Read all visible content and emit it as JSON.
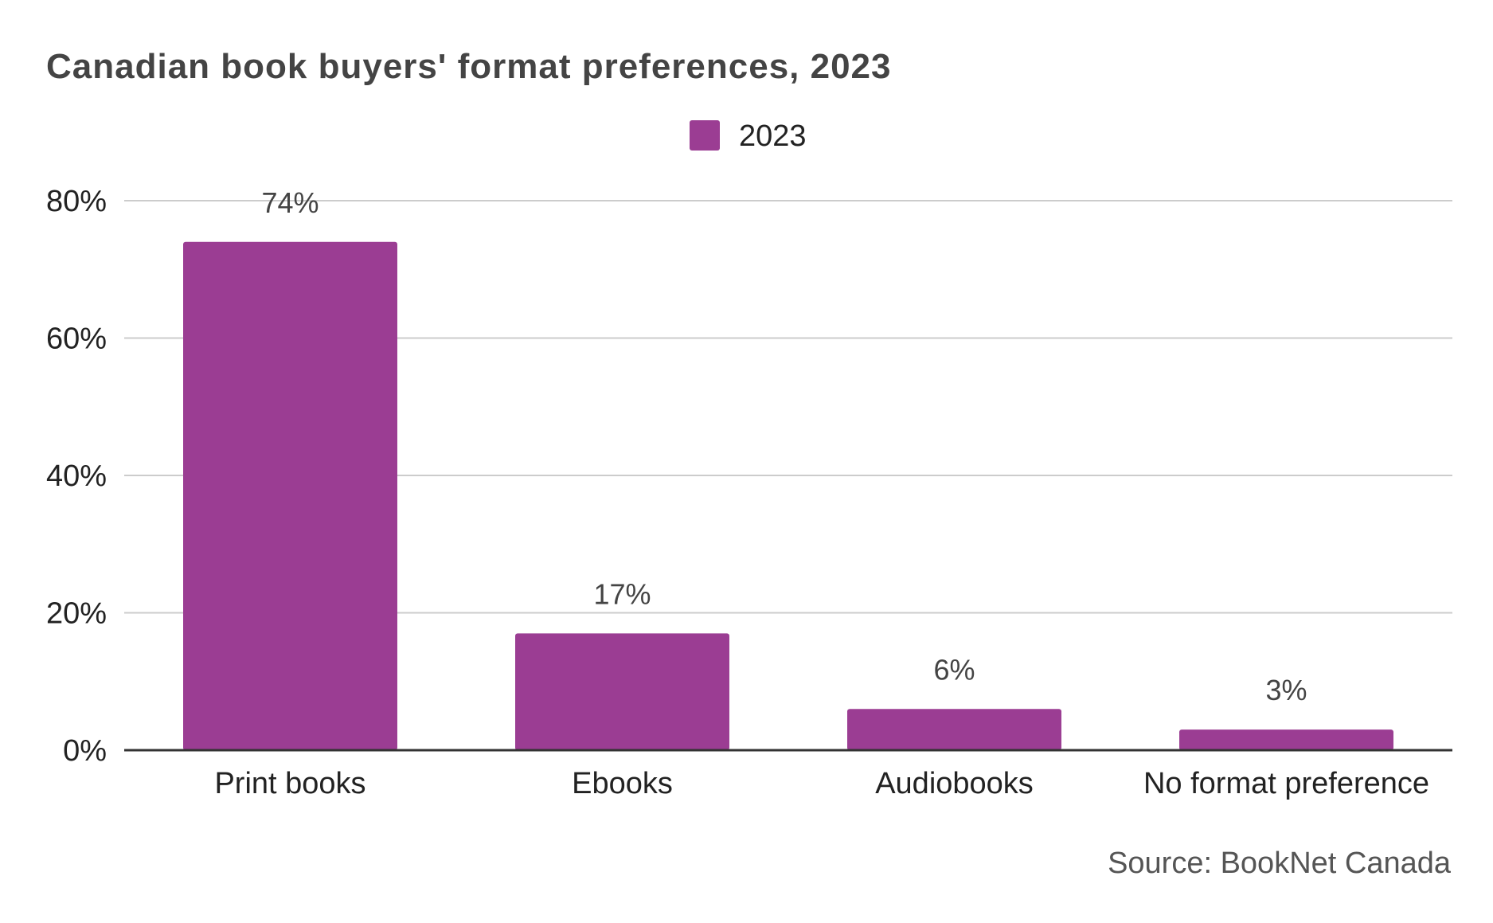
{
  "chart_data": {
    "type": "bar",
    "title": "Canadian book buyers' format preferences, 2023",
    "categories": [
      "Print books",
      "Ebooks",
      "Audiobooks",
      "No format preference"
    ],
    "series": [
      {
        "name": "2023",
        "values": [
          74,
          17,
          6,
          3
        ],
        "labels": [
          "74%",
          "17%",
          "6%",
          "3%"
        ]
      }
    ],
    "yticks": [
      {
        "value": 0,
        "label": "0%"
      },
      {
        "value": 20,
        "label": "20%"
      },
      {
        "value": 40,
        "label": "40%"
      },
      {
        "value": 60,
        "label": "60%"
      },
      {
        "value": 80,
        "label": "80%"
      }
    ],
    "ylim": [
      0,
      80
    ],
    "xlabel": "",
    "ylabel": "",
    "grid": true,
    "legend_position": "top-center",
    "bar_color": "#9B3D93",
    "source": "Source: BookNet Canada"
  }
}
